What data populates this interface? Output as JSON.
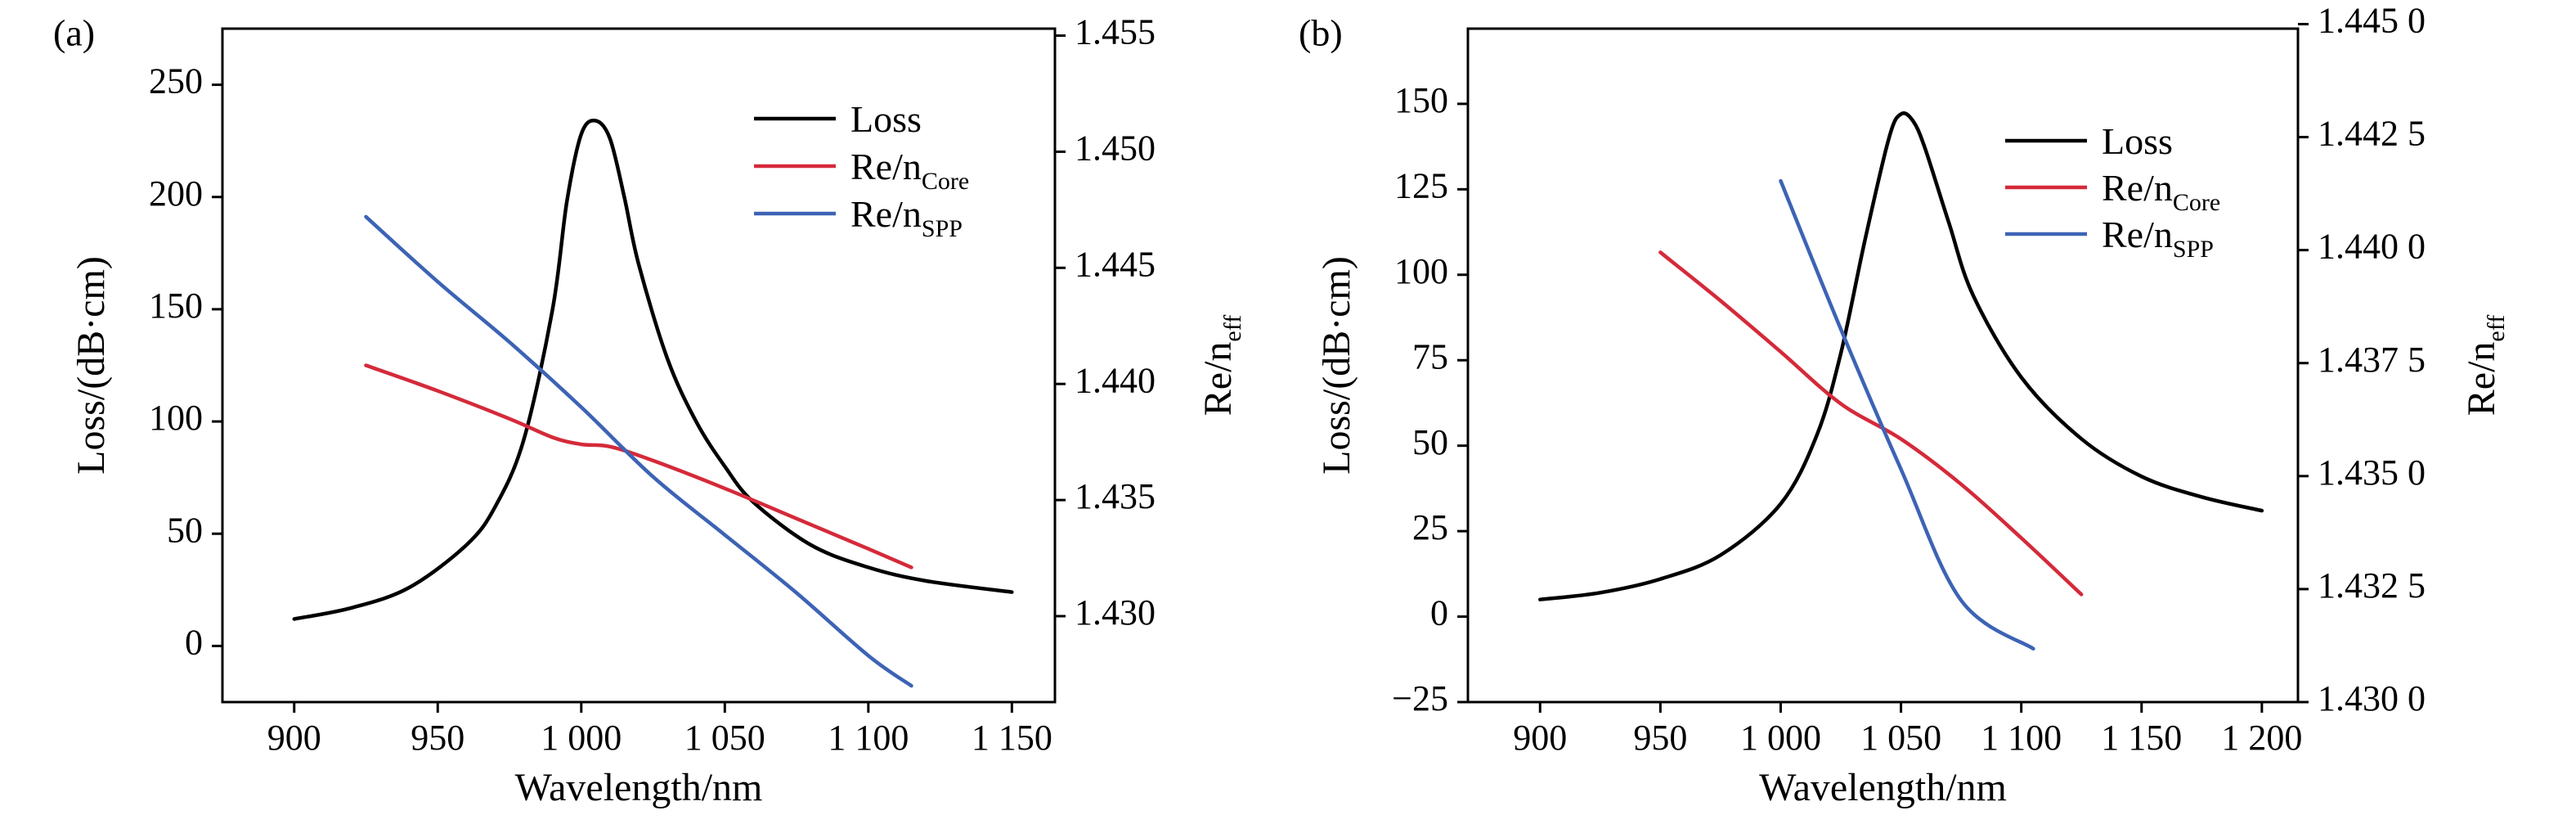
{
  "colors": {
    "loss": "#000000",
    "core": "#d42a3a",
    "spp": "#3d63b5"
  },
  "chart_data": [
    {
      "type": "line",
      "panel_label": "(a)",
      "xlabel": "Wavelength/nm",
      "ylabel_left": "Loss/(dB·cm)",
      "ylabel_right_base": "Re/n",
      "ylabel_right_sub": "eff",
      "xlim": [
        875,
        1165
      ],
      "ylim_left": [
        -25,
        275
      ],
      "ylim_right": [
        1.4263,
        1.4553
      ],
      "x_ticks": [
        900,
        950,
        1000,
        1050,
        1100,
        1150
      ],
      "x_tick_labels": [
        "900",
        "950",
        "1 000",
        "1 050",
        "1 100",
        "1 150"
      ],
      "y_left_ticks": [
        0,
        50,
        100,
        150,
        200,
        250
      ],
      "y_left_tick_labels": [
        "0",
        "50",
        "100",
        "150",
        "200",
        "250"
      ],
      "y_right_ticks": [
        1.43,
        1.435,
        1.44,
        1.445,
        1.45,
        1.455
      ],
      "y_right_tick_labels": [
        "1.430",
        "1.435",
        "1.440",
        "1.445",
        "1.450",
        "1.455"
      ],
      "legend": [
        {
          "base": "Loss",
          "sub": "",
          "series": "loss"
        },
        {
          "base": "Re/n",
          "sub": "Core",
          "series": "core"
        },
        {
          "base": "Re/n",
          "sub": "SPP",
          "series": "spp"
        }
      ],
      "series": [
        {
          "key": "loss",
          "name": "Loss",
          "axis": "left",
          "x": [
            900,
            920,
            940,
            960,
            970,
            980,
            990,
            995,
            1000,
            1005,
            1010,
            1015,
            1020,
            1030,
            1040,
            1050,
            1060,
            1080,
            1100,
            1120,
            1150
          ],
          "y": [
            12,
            17,
            26,
            45,
            62,
            92,
            150,
            198,
            228,
            234,
            226,
            200,
            170,
            128,
            100,
            80,
            64,
            45,
            35,
            29,
            24
          ]
        },
        {
          "key": "core",
          "name": "Re/n_Core",
          "axis": "right",
          "x": [
            925,
            950,
            975,
            990,
            1000,
            1010,
            1025,
            1050,
            1075,
            1100,
            1115
          ],
          "y": [
            1.4408,
            1.4397,
            1.4385,
            1.4377,
            1.4374,
            1.4373,
            1.4367,
            1.4355,
            1.4342,
            1.4329,
            1.4321
          ]
        },
        {
          "key": "spp",
          "name": "Re/n_SPP",
          "axis": "right",
          "x": [
            925,
            950,
            975,
            1000,
            1025,
            1050,
            1075,
            1100,
            1115
          ],
          "y": [
            1.4472,
            1.4444,
            1.4418,
            1.439,
            1.436,
            1.4335,
            1.431,
            1.4283,
            1.427
          ]
        }
      ]
    },
    {
      "type": "line",
      "panel_label": "(b)",
      "xlabel": "Wavelength/nm",
      "ylabel_left": "Loss/(dB·cm)",
      "ylabel_right_base": "Re/n",
      "ylabel_right_sub": "eff",
      "xlim": [
        870,
        1215
      ],
      "ylim_left": [
        -25,
        172
      ],
      "ylim_right": [
        1.43,
        1.4449
      ],
      "x_ticks": [
        900,
        950,
        1000,
        1050,
        1100,
        1150,
        1200
      ],
      "x_tick_labels": [
        "900",
        "950",
        "1 000",
        "1 050",
        "1 100",
        "1 150",
        "1 200"
      ],
      "y_left_ticks": [
        -25,
        0,
        25,
        50,
        75,
        100,
        125,
        150
      ],
      "y_left_tick_labels": [
        "−25",
        "0",
        "25",
        "50",
        "75",
        "100",
        "125",
        "150"
      ],
      "y_right_ticks": [
        1.43,
        1.4325,
        1.435,
        1.4375,
        1.44,
        1.4425,
        1.445
      ],
      "y_right_tick_labels": [
        "1.430 0",
        "1.432 5",
        "1.435 0",
        "1.437 5",
        "1.440 0",
        "1.442 5",
        "1.445 0"
      ],
      "legend": [
        {
          "base": "Loss",
          "sub": "",
          "series": "loss"
        },
        {
          "base": "Re/n",
          "sub": "Core",
          "series": "core"
        },
        {
          "base": "Re/n",
          "sub": "SPP",
          "series": "spp"
        }
      ],
      "series": [
        {
          "key": "loss",
          "name": "Loss",
          "axis": "left",
          "x": [
            900,
            925,
            950,
            975,
            1000,
            1015,
            1025,
            1035,
            1045,
            1050,
            1055,
            1060,
            1070,
            1080,
            1100,
            1125,
            1150,
            1175,
            1200
          ],
          "y": [
            5,
            7,
            11,
            18,
            33,
            53,
            77,
            110,
            140,
            147,
            145,
            137,
            115,
            94,
            70,
            52,
            41,
            35,
            31
          ]
        },
        {
          "key": "core",
          "name": "Re/n_Core",
          "axis": "right",
          "x": [
            950,
            975,
            1000,
            1025,
            1050,
            1075,
            1100,
            1125
          ],
          "y": [
            1.43995,
            1.43888,
            1.43775,
            1.4366,
            1.43582,
            1.43482,
            1.43363,
            1.43238
          ]
        },
        {
          "key": "spp",
          "name": "Re/n_SPP",
          "axis": "right",
          "x": [
            1000,
            1025,
            1050,
            1075,
            1105
          ],
          "y": [
            1.44153,
            1.43825,
            1.43515,
            1.43225,
            1.43118
          ]
        }
      ]
    }
  ]
}
